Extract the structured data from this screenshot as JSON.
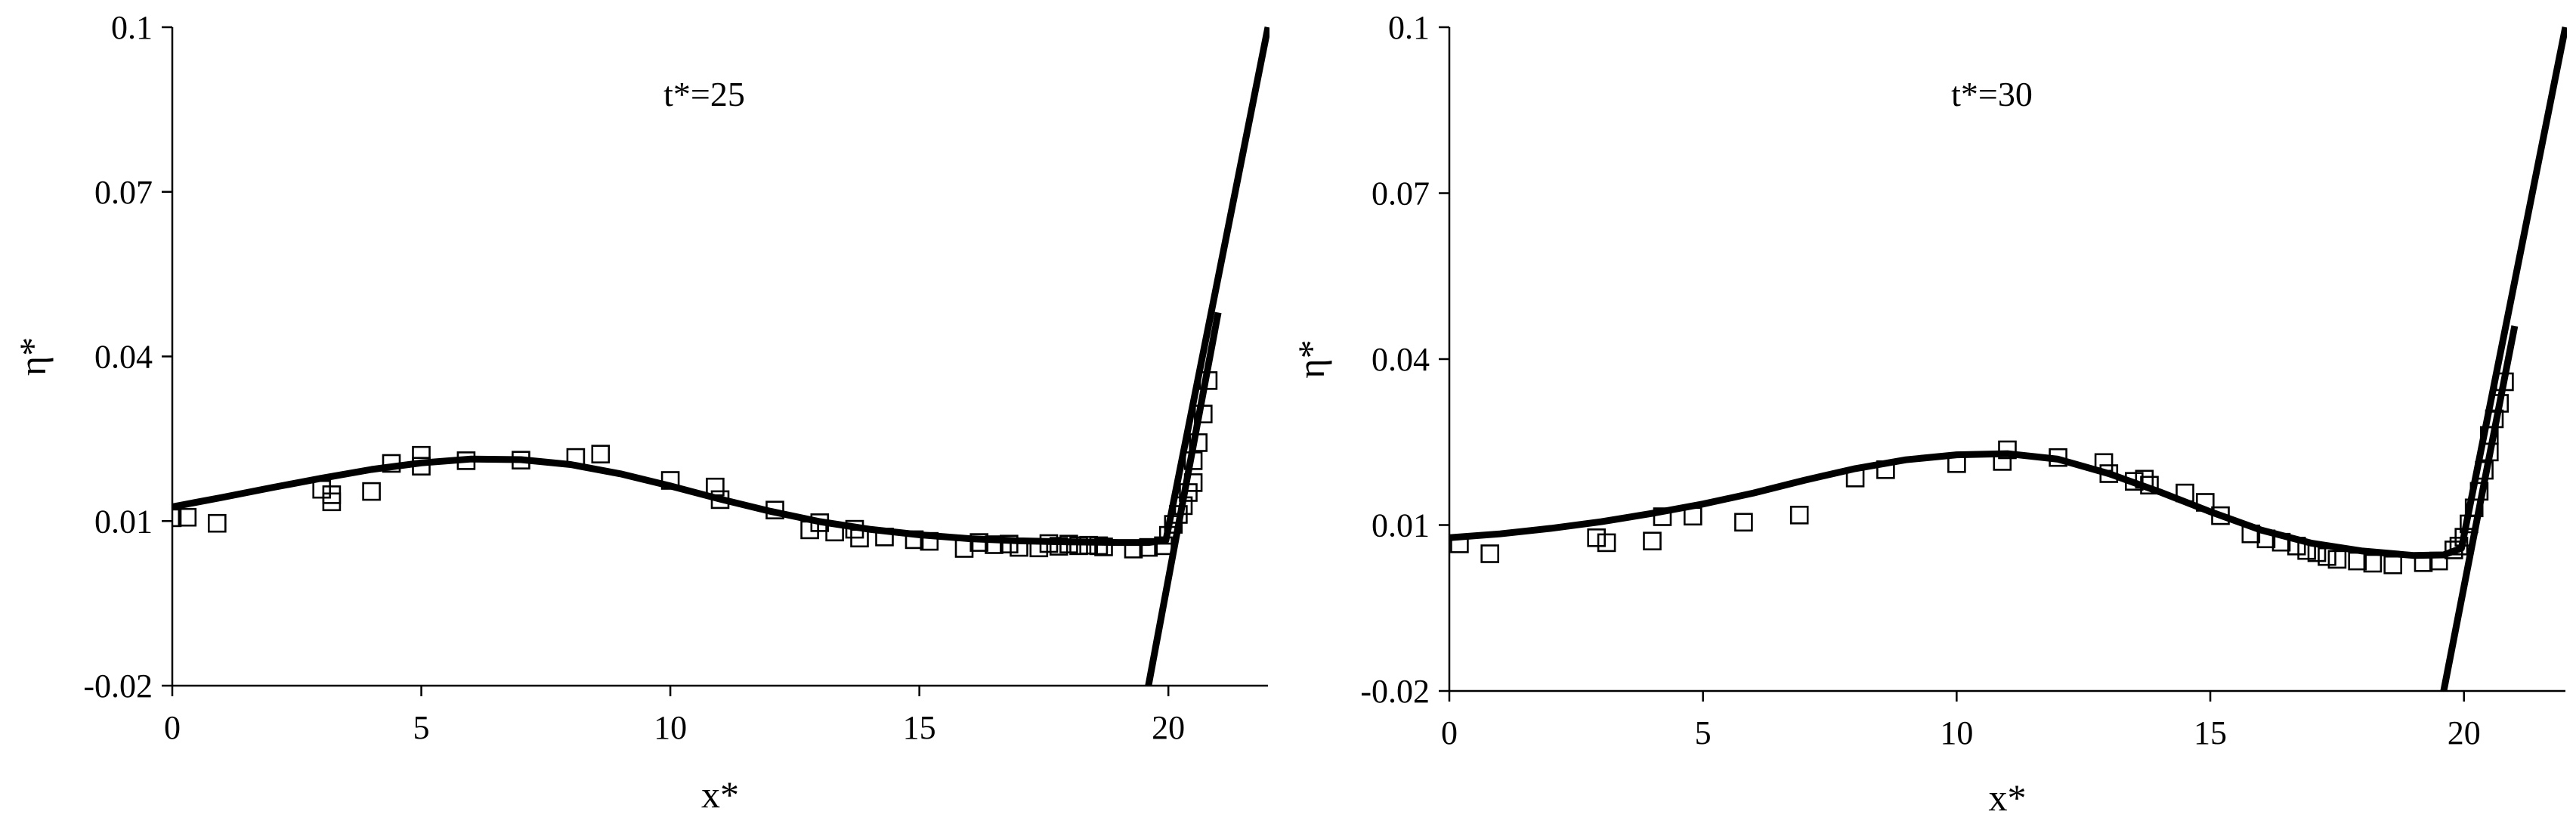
{
  "colors": {
    "curve": "#000000",
    "markers": "#000000",
    "axes": "#000000",
    "background": "#ffffff"
  },
  "chart_data": [
    {
      "type": "line",
      "title": "t*=25",
      "xlabel": "x*",
      "ylabel": "η*",
      "xlim": [
        0,
        22
      ],
      "ylim": [
        -0.02,
        0.1
      ],
      "xticks": [
        0,
        5,
        10,
        15,
        20
      ],
      "xtick_labels": [
        "0",
        "5",
        "10",
        "15",
        "20"
      ],
      "yticks": [
        -0.02,
        0.01,
        0.04,
        0.07,
        0.1
      ],
      "ytick_labels": [
        "-0.02",
        "0.01",
        "0.04",
        "0.07",
        "0.1"
      ],
      "grid": false,
      "series": [
        {
          "style": "solid-line",
          "x": [
            0,
            1,
            2,
            3,
            4,
            5,
            6,
            7,
            8,
            9,
            10,
            11,
            12,
            13,
            14,
            15,
            16,
            17,
            18,
            19,
            19.6,
            19.95,
            22
          ],
          "y": [
            0.0126,
            0.0143,
            0.0161,
            0.0178,
            0.0194,
            0.0206,
            0.0213,
            0.0212,
            0.0203,
            0.0186,
            0.0164,
            0.014,
            0.0118,
            0.0099,
            0.0085,
            0.0075,
            0.0068,
            0.0064,
            0.0062,
            0.0061,
            0.0061,
            0.0065,
            0.1
          ]
        },
        {
          "style": "solid-line",
          "x": [
            19.6,
            21.0
          ],
          "y": [
            -0.02,
            0.048
          ]
        },
        {
          "style": "open-squares",
          "x": [
            0,
            0.3,
            0.9,
            3.0,
            3.2,
            3.2,
            4.0,
            4.4,
            5.0,
            5.0,
            5.9,
            7.0,
            8.1,
            8.6,
            10.0,
            10.9,
            11.0,
            12.1,
            12.8,
            13.0,
            13.3,
            13.7,
            13.8,
            14.3,
            14.9,
            15.2,
            15.9,
            16.2,
            16.5,
            16.8,
            17.0,
            17.4,
            17.6,
            17.8,
            18.0,
            18.2,
            18.4,
            18.6,
            18.7,
            19.3,
            19.6,
            19.9,
            20.0,
            20.1,
            20.2,
            20.3,
            20.4,
            20.5,
            20.5,
            20.6,
            20.7,
            20.8
          ],
          "y": [
            0.0106,
            0.0107,
            0.0096,
            0.0158,
            0.0148,
            0.0135,
            0.0154,
            0.0205,
            0.02,
            0.022,
            0.021,
            0.0211,
            0.0216,
            0.0222,
            0.0174,
            0.0162,
            0.0139,
            0.012,
            0.0084,
            0.0097,
            0.008,
            0.0085,
            0.0069,
            0.0071,
            0.0066,
            0.0063,
            0.005,
            0.0061,
            0.0057,
            0.0058,
            0.0052,
            0.0051,
            0.0059,
            0.0054,
            0.0058,
            0.0055,
            0.0056,
            0.0055,
            0.0053,
            0.0049,
            0.0052,
            0.0055,
            0.0074,
            0.0094,
            0.0112,
            0.0128,
            0.0152,
            0.017,
            0.021,
            0.0243,
            0.0295,
            0.0356
          ]
        }
      ]
    },
    {
      "type": "line",
      "title": "t*=30",
      "xlabel": "x*",
      "ylabel": "η*",
      "xlim": [
        0,
        22
      ],
      "ylim": [
        -0.02,
        0.1
      ],
      "xticks": [
        0,
        5,
        10,
        15,
        20
      ],
      "xtick_labels": [
        "0",
        "5",
        "10",
        "15",
        "20"
      ],
      "yticks": [
        -0.02,
        0.01,
        0.04,
        0.07,
        0.1
      ],
      "ytick_labels": [
        "-0.02",
        "0.01",
        "0.04",
        "0.07",
        "0.1"
      ],
      "grid": false,
      "series": [
        {
          "style": "solid-line",
          "x": [
            0,
            1,
            2,
            3,
            4,
            5,
            6,
            7,
            8,
            9,
            10,
            11,
            12,
            13,
            14,
            15,
            16,
            17,
            18,
            19,
            19.6,
            19.95,
            22
          ],
          "y": [
            0.0077,
            0.0084,
            0.0094,
            0.0106,
            0.0121,
            0.0138,
            0.0158,
            0.0181,
            0.0202,
            0.0218,
            0.0227,
            0.0229,
            0.0219,
            0.0193,
            0.016,
            0.0124,
            0.0091,
            0.0067,
            0.0053,
            0.0045,
            0.0046,
            0.0058,
            0.1
          ]
        },
        {
          "style": "solid-line",
          "x": [
            19.6,
            21.0
          ],
          "y": [
            -0.02,
            0.046
          ]
        },
        {
          "style": "open-squares",
          "x": [
            0.2,
            0.8,
            2.9,
            3.1,
            4.0,
            4.2,
            4.8,
            5.8,
            6.9,
            8.0,
            8.6,
            10.0,
            10.9,
            11.0,
            12.0,
            12.9,
            13.0,
            13.5,
            13.7,
            13.8,
            14.5,
            14.9,
            15.2,
            15.8,
            16.1,
            16.4,
            16.7,
            16.9,
            17.1,
            17.3,
            17.5,
            17.9,
            18.2,
            18.6,
            19.2,
            19.5,
            19.8,
            19.9,
            20.0,
            20.1,
            20.2,
            20.3,
            20.4,
            20.5,
            20.5,
            20.6,
            20.7,
            20.8
          ],
          "y": [
            0.0066,
            0.0048,
            0.0077,
            0.0068,
            0.0071,
            0.0115,
            0.0116,
            0.0105,
            0.0118,
            0.0185,
            0.02,
            0.0211,
            0.0215,
            0.0236,
            0.0222,
            0.0213,
            0.0193,
            0.0179,
            0.0183,
            0.0172,
            0.0158,
            0.0141,
            0.0117,
            0.0084,
            0.0075,
            0.0069,
            0.0062,
            0.0054,
            0.005,
            0.0043,
            0.0038,
            0.0035,
            0.0031,
            0.0028,
            0.0032,
            0.0035,
            0.0055,
            0.0062,
            0.0078,
            0.0102,
            0.0131,
            0.0161,
            0.0199,
            0.0232,
            0.0262,
            0.0292,
            0.032,
            0.0359
          ]
        }
      ]
    }
  ]
}
